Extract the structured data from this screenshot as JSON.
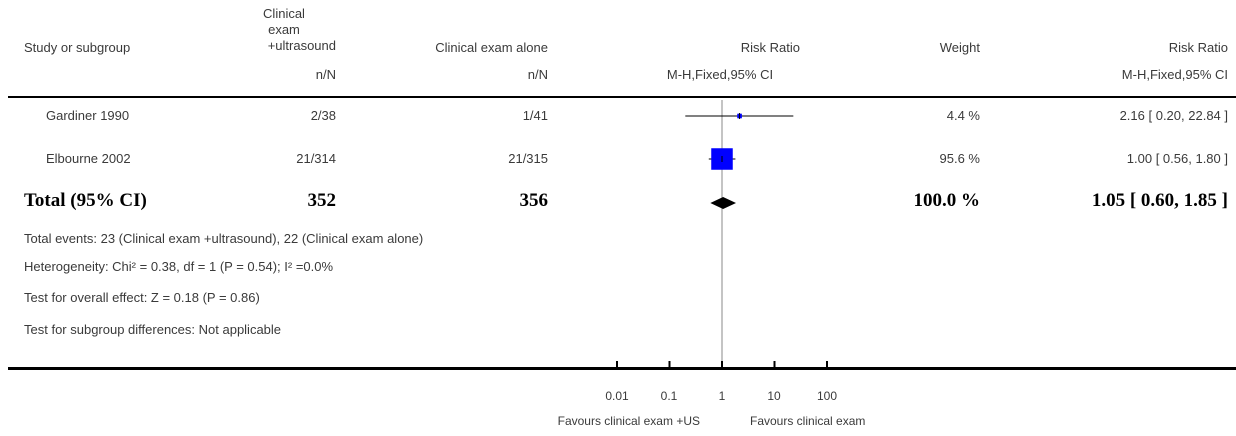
{
  "header": {
    "study_col": "Study or subgroup",
    "group1_line1": "Clinical",
    "group1_line2": "exam",
    "group1_line3": "+ultrasound",
    "group2": "Clinical exam alone",
    "effect_col": "Risk Ratio",
    "weight_col": "Weight",
    "effect_col2": "Risk Ratio",
    "nN1": "n/N",
    "nN2": "n/N",
    "method": "M-H,Fixed,95% CI",
    "method2": "M-H,Fixed,95% CI"
  },
  "studies": [
    {
      "name": "Gardiner 1990",
      "g1": "2/38",
      "g2": "1/41",
      "weight": "4.4 %",
      "ci_text": "2.16 [ 0.20, 22.84 ]"
    },
    {
      "name": "Elbourne 2002",
      "g1": "21/314",
      "g2": "21/315",
      "weight": "95.6 %",
      "ci_text": "1.00 [ 0.56, 1.80 ]"
    }
  ],
  "total": {
    "label": "Total (95% CI)",
    "g1": "352",
    "g2": "356",
    "weight": "100.0 %",
    "ci_text": "1.05 [ 0.60, 1.85 ]"
  },
  "footnotes": {
    "events": "Total events: 23 (Clinical exam +ultrasound), 22 (Clinical exam alone)",
    "heterogeneity": "Heterogeneity: Chi² = 0.38, df = 1 (P = 0.54); I² =0.0%",
    "overall": "Test for overall effect: Z = 0.18 (P = 0.86)",
    "subgroup": "Test for subgroup differences: Not applicable"
  },
  "axis": {
    "ticks": [
      "0.01",
      "0.1",
      "1",
      "10",
      "100"
    ],
    "favours_left": "Favours clinical exam +US",
    "favours_right": "Favours clinical exam"
  },
  "colors": {
    "square": "#0000ff",
    "diamond": "#000000",
    "line": "#000000"
  },
  "chart_data": {
    "type": "forest",
    "scale": "log",
    "xlim": [
      0.01,
      100
    ],
    "null_value": 1,
    "studies": [
      {
        "name": "Gardiner 1990",
        "rr": 2.16,
        "lo": 0.2,
        "hi": 22.84,
        "weight": 4.4
      },
      {
        "name": "Elbourne 2002",
        "rr": 1.0,
        "lo": 0.56,
        "hi": 1.8,
        "weight": 95.6
      }
    ],
    "pooled": {
      "rr": 1.05,
      "lo": 0.6,
      "hi": 1.85
    }
  }
}
